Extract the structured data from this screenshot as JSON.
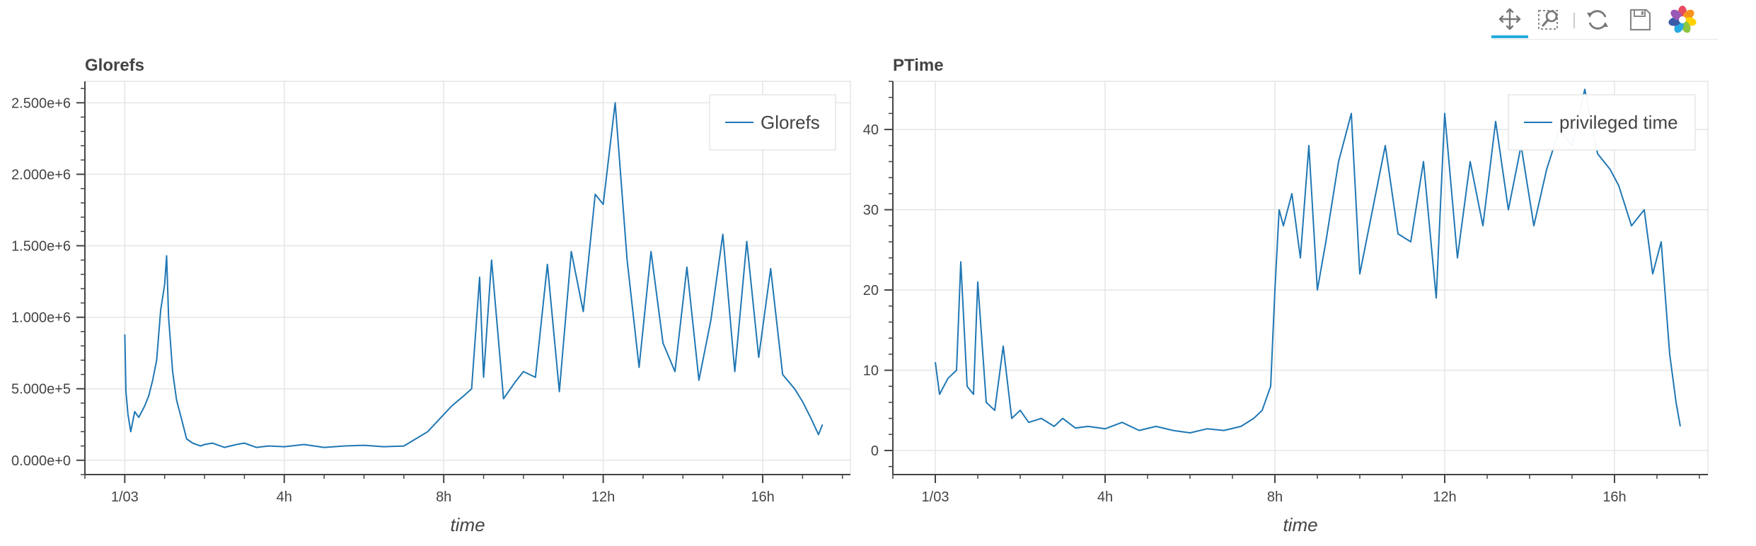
{
  "toolbar": {
    "tools": [
      {
        "name": "pan-icon",
        "active": true
      },
      {
        "name": "box-zoom-icon",
        "active": false
      },
      {
        "name": "reset-icon",
        "active": false
      },
      {
        "name": "save-icon",
        "active": false
      },
      {
        "name": "bokeh-logo-icon",
        "active": false
      }
    ],
    "accent_color": "#26aae1"
  },
  "colors": {
    "line": "#1f77b4",
    "grid": "#e5e5e5",
    "axis": "#444444",
    "title": "#444444"
  },
  "chart_data": [
    {
      "type": "line",
      "title": "Glorefs",
      "xlabel": "time",
      "ylabel": "",
      "x_ticks": [
        "1/03",
        "4h",
        "8h",
        "12h",
        "16h"
      ],
      "x_tick_hours": [
        0,
        4,
        8,
        12,
        16
      ],
      "xlim": [
        -1.0,
        18.2
      ],
      "y_ticks": [
        "0.000e+0",
        "5.000e+5",
        "1.000e+6",
        "1.500e+6",
        "2.000e+6",
        "2.500e+6"
      ],
      "y_tick_values": [
        0,
        500000,
        1000000,
        1500000,
        2000000,
        2500000
      ],
      "ylim": [
        -100000,
        2650000
      ],
      "grid": true,
      "legend_position": "top-right",
      "series": [
        {
          "name": "Glorefs",
          "x": [
            0.0,
            0.03,
            0.08,
            0.15,
            0.25,
            0.35,
            0.5,
            0.6,
            0.7,
            0.8,
            0.9,
            1.0,
            1.05,
            1.1,
            1.2,
            1.3,
            1.45,
            1.55,
            1.7,
            1.9,
            2.0,
            2.2,
            2.5,
            2.8,
            3.0,
            3.3,
            3.6,
            4.0,
            4.5,
            5.0,
            5.5,
            6.0,
            6.5,
            7.0,
            7.3,
            7.6,
            7.8,
            8.0,
            8.2,
            8.5,
            8.7,
            8.9,
            9.0,
            9.2,
            9.5,
            9.8,
            10.0,
            10.3,
            10.6,
            10.9,
            11.2,
            11.5,
            11.8,
            12.0,
            12.3,
            12.6,
            12.9,
            13.2,
            13.5,
            13.8,
            14.1,
            14.4,
            14.7,
            15.0,
            15.3,
            15.6,
            15.9,
            16.2,
            16.5,
            16.8,
            17.0,
            17.2,
            17.4,
            17.5
          ],
          "y": [
            880000,
            480000,
            320000,
            200000,
            340000,
            300000,
            380000,
            450000,
            560000,
            700000,
            1050000,
            1230000,
            1430000,
            1000000,
            620000,
            420000,
            260000,
            150000,
            120000,
            100000,
            110000,
            120000,
            90000,
            110000,
            120000,
            90000,
            100000,
            95000,
            110000,
            90000,
            100000,
            105000,
            95000,
            100000,
            150000,
            200000,
            260000,
            320000,
            380000,
            450000,
            500000,
            1280000,
            580000,
            1400000,
            430000,
            550000,
            620000,
            580000,
            1370000,
            480000,
            1460000,
            1040000,
            1860000,
            1790000,
            2500000,
            1400000,
            650000,
            1460000,
            820000,
            620000,
            1350000,
            560000,
            980000,
            1580000,
            620000,
            1530000,
            720000,
            1340000,
            600000,
            500000,
            410000,
            300000,
            180000,
            250000
          ]
        }
      ]
    },
    {
      "type": "line",
      "title": "PTime",
      "xlabel": "time",
      "ylabel": "",
      "x_ticks": [
        "1/03",
        "4h",
        "8h",
        "12h",
        "16h"
      ],
      "x_tick_hours": [
        0,
        4,
        8,
        12,
        16
      ],
      "xlim": [
        -1.0,
        18.2
      ],
      "y_ticks": [
        "0",
        "10",
        "20",
        "30",
        "40"
      ],
      "y_tick_values": [
        0,
        10,
        20,
        30,
        40
      ],
      "ylim": [
        -3,
        46
      ],
      "grid": true,
      "legend_position": "top-right",
      "series": [
        {
          "name": "privileged time",
          "x": [
            0.0,
            0.1,
            0.3,
            0.5,
            0.6,
            0.75,
            0.9,
            1.0,
            1.2,
            1.4,
            1.6,
            1.8,
            2.0,
            2.2,
            2.5,
            2.8,
            3.0,
            3.3,
            3.6,
            4.0,
            4.4,
            4.8,
            5.2,
            5.6,
            6.0,
            6.4,
            6.8,
            7.2,
            7.5,
            7.7,
            7.9,
            8.0,
            8.1,
            8.2,
            8.4,
            8.6,
            8.8,
            9.0,
            9.2,
            9.5,
            9.8,
            10.0,
            10.3,
            10.6,
            10.9,
            11.2,
            11.5,
            11.8,
            12.0,
            12.3,
            12.6,
            12.9,
            13.2,
            13.5,
            13.8,
            14.1,
            14.4,
            14.7,
            15.0,
            15.3,
            15.6,
            15.9,
            16.1,
            16.4,
            16.7,
            16.9,
            17.1,
            17.3,
            17.45,
            17.55
          ],
          "y": [
            11,
            7,
            9,
            10,
            23.5,
            8,
            7,
            21,
            6,
            5,
            13,
            4,
            5,
            3.5,
            4,
            3,
            4,
            2.8,
            3,
            2.7,
            3.5,
            2.5,
            3,
            2.5,
            2.2,
            2.7,
            2.5,
            3,
            4,
            5,
            8,
            20,
            30,
            28,
            32,
            24,
            38,
            20,
            26,
            36,
            42,
            22,
            30,
            38,
            27,
            26,
            36,
            19,
            42,
            24,
            36,
            28,
            41,
            30,
            38,
            28,
            35,
            40,
            38,
            45,
            37,
            35,
            33,
            28,
            30,
            22,
            26,
            12,
            6,
            3
          ]
        }
      ]
    }
  ]
}
